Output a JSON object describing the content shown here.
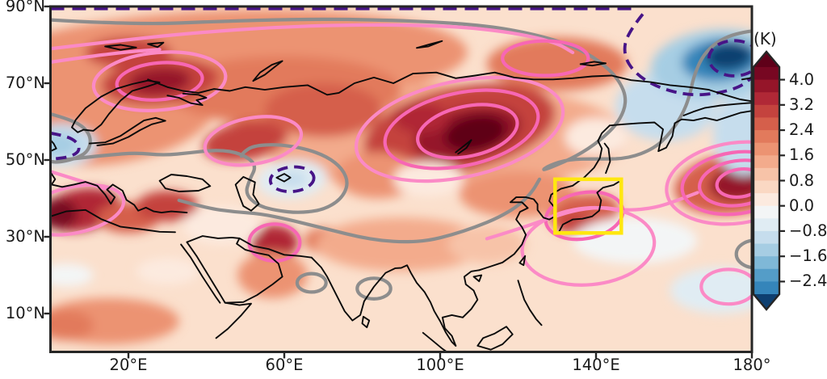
{
  "figure": {
    "colorbar": {
      "label": "(K)",
      "ticks": [
        {
          "value": 4.0,
          "label": "4.0"
        },
        {
          "value": 3.2,
          "label": "3.2"
        },
        {
          "value": 2.4,
          "label": "2.4"
        },
        {
          "value": 1.6,
          "label": "1.6"
        },
        {
          "value": 0.8,
          "label": "0.8"
        },
        {
          "value": 0.0,
          "label": "0.0"
        },
        {
          "value": -0.8,
          "label": "−0.8"
        },
        {
          "value": -1.6,
          "label": "−1.6"
        },
        {
          "value": -2.4,
          "label": "−2.4"
        }
      ],
      "top_value": 4.4,
      "bottom_value": -2.8,
      "step": 0.4,
      "segment_colors": [
        "#770722",
        "#951529",
        "#b02836",
        "#c4433e",
        "#d55f4b",
        "#e27a5c",
        "#ec9372",
        "#f3ab8c",
        "#f7c3a8",
        "#fad8c3",
        "#fceadf",
        "#f3f5f6",
        "#e0ecf3",
        "#c6dded",
        "#a6cde3",
        "#7fb8d7",
        "#549dc8",
        "#3585ba"
      ],
      "arrow_top_color": "#5f0019",
      "arrow_bottom_color": "#0e3f70"
    },
    "x_axis": {
      "ticks": [
        {
          "lon": 20,
          "label": "20°E"
        },
        {
          "lon": 60,
          "label": "60°E"
        },
        {
          "lon": 100,
          "label": "100°E"
        },
        {
          "lon": 140,
          "label": "140°E"
        },
        {
          "lon": 180,
          "label": "180°"
        }
      ]
    },
    "y_axis": {
      "ticks": [
        {
          "lat": 90,
          "label": "90°N"
        },
        {
          "lat": 70,
          "label": "70°N"
        },
        {
          "lat": 50,
          "label": "50°N"
        },
        {
          "lat": 30,
          "label": "30°N"
        },
        {
          "lat": 10,
          "label": "10°N"
        }
      ]
    }
  },
  "chart_data": {
    "type": "heatmap",
    "description": "Filled-contour map of temperature anomalies (K) over Eurasia, 0–180°E and 0–90°N. Shading shows anomalies from below −2.4 K (blue) to above 4.0 K (dark red). Pink solid contours outline positive anomaly centers, the thick gray line is the zero contour, dark-purple dashed contours outline negative anomalies, and a yellow box highlights the Korea–Japan region.",
    "units": "K",
    "extent": {
      "lon": [
        0,
        180
      ],
      "lat": [
        0,
        90
      ]
    },
    "levels": {
      "shading_step": 0.4,
      "shading_range": [
        -2.8,
        4.4
      ],
      "extend": "both"
    },
    "contour_colors": {
      "positive": "#f767b4",
      "positive_light": "#fb8ac6",
      "zero": "#8d8d8d",
      "negative": "#471487",
      "negative_style": "dashed"
    },
    "highlight_box": {
      "color": "#ffe70f",
      "lon": [
        129.5,
        146.5
      ],
      "lat": [
        31,
        45
      ]
    },
    "warm_centers": [
      {
        "lon": 108,
        "lat": 57,
        "peak_K": 4.6
      },
      {
        "lon": 28,
        "lat": 70.5,
        "peak_K": 4.0
      },
      {
        "lon": 2,
        "lat": 36,
        "peak_K": 4.2
      },
      {
        "lon": 177,
        "lat": 44,
        "peak_K": 3.8
      },
      {
        "lon": 57.5,
        "lat": 28.5,
        "peak_K": 3.4
      },
      {
        "lon": 50,
        "lat": 55,
        "peak_K": 2.9
      },
      {
        "lon": 137,
        "lat": 35,
        "peak_K": 2.9
      },
      {
        "lon": 20,
        "lat": 78,
        "peak_K": 3.0
      }
    ],
    "cold_centers": [
      {
        "lon": 173,
        "lat": 76,
        "peak_K": -2.8
      },
      {
        "lon": 2,
        "lat": 54,
        "peak_K": -1.5
      },
      {
        "lon": 62,
        "lat": 45,
        "peak_K": -1.1
      },
      {
        "lon": 158,
        "lat": 64,
        "peak_K": -0.9
      },
      {
        "lon": 178,
        "lat": 57,
        "peak_K": -1.1
      }
    ],
    "render": {
      "base_color": "#fbe0cd",
      "blobs": [
        [
          45,
          76,
          62,
          13,
          -2,
          1.8
        ],
        [
          15,
          62,
          28,
          13,
          -8,
          1.8
        ],
        [
          100,
          56,
          48,
          14,
          0,
          1.6
        ],
        [
          60,
          68,
          30,
          9,
          0,
          2.2
        ],
        [
          130,
          75,
          18,
          7,
          0,
          2.2
        ],
        [
          20,
          78,
          11,
          4,
          0,
          3.0
        ],
        [
          28,
          70.5,
          15,
          6,
          -5,
          3.0
        ],
        [
          28,
          70.5,
          8,
          3.5,
          -5,
          4.0
        ],
        [
          50,
          55,
          11,
          5,
          -10,
          2.9
        ],
        [
          70,
          63,
          15,
          7,
          0,
          2.6
        ],
        [
          105,
          58,
          25,
          11,
          -12,
          2.9
        ],
        [
          107,
          57,
          14,
          6.5,
          -12,
          3.8
        ],
        [
          109,
          57,
          8,
          4.5,
          -12,
          4.6
        ],
        [
          95,
          61,
          7,
          4,
          0,
          3.3
        ],
        [
          8,
          37,
          10,
          5.5,
          -10,
          3.6
        ],
        [
          2,
          36,
          5,
          4,
          0,
          4.2
        ],
        [
          20,
          35,
          8,
          4,
          0,
          2.8
        ],
        [
          30,
          38,
          8,
          4,
          0,
          3.0
        ],
        [
          57.5,
          28.5,
          6,
          4.5,
          0,
          3.4
        ],
        [
          71,
          29,
          6,
          3.5,
          0,
          2.2
        ],
        [
          57,
          20,
          9,
          6,
          0,
          2.0
        ],
        [
          120,
          41,
          15,
          6,
          0,
          1.7
        ],
        [
          137,
          36,
          9,
          5,
          -10,
          2.5
        ],
        [
          135,
          33.5,
          5,
          2.8,
          0,
          2.9
        ],
        [
          176,
          44,
          16,
          8,
          -8,
          2.7
        ],
        [
          177,
          44,
          8,
          4.5,
          -8,
          3.8
        ],
        [
          15,
          8,
          18,
          6,
          0,
          1.7
        ],
        [
          4,
          7,
          7,
          4,
          0,
          2.4
        ],
        [
          90,
          28,
          22,
          7,
          0,
          1.3
        ],
        [
          112,
          28,
          10,
          5,
          0,
          1.2
        ],
        [
          84,
          46,
          11,
          6,
          0,
          1.7
        ],
        [
          97,
          45,
          9,
          4.5,
          0,
          0.2
        ],
        [
          140,
          56,
          8,
          5,
          0,
          0.2
        ],
        [
          44,
          33,
          10,
          5,
          0,
          0.2
        ],
        [
          30,
          21,
          8,
          3.5,
          0,
          0.1
        ],
        [
          150,
          29,
          16,
          6,
          0,
          -0.2
        ],
        [
          172,
          16,
          13,
          6,
          0,
          -0.4
        ],
        [
          4,
          20,
          7,
          3,
          0,
          -0.3
        ],
        [
          3,
          54,
          9,
          5.5,
          0,
          -1.1
        ],
        [
          2,
          54,
          5,
          3,
          0,
          -1.5
        ],
        [
          62,
          45,
          9,
          5,
          -5,
          -0.7
        ],
        [
          62,
          45,
          4,
          2.2,
          0,
          -1.1
        ],
        [
          158,
          64,
          13,
          9,
          0,
          -0.9
        ],
        [
          178,
          57,
          8,
          11,
          0,
          -1.1
        ],
        [
          171,
          75,
          17,
          9,
          -5,
          -1.5
        ],
        [
          172,
          76,
          10,
          5.5,
          -5,
          -2.4
        ],
        [
          174,
          77,
          6,
          3.5,
          -5,
          -2.8
        ]
      ],
      "pink_rings": [
        [
          28,
          70.5,
          17,
          7.5,
          -5,
          0
        ],
        [
          28,
          70.5,
          11,
          4.8,
          -5,
          1
        ],
        [
          6,
          37,
          13,
          6,
          -12,
          0
        ],
        [
          57.5,
          28.5,
          6.5,
          4.8,
          0,
          1
        ],
        [
          52,
          55,
          12.5,
          6,
          -10,
          0
        ],
        [
          105,
          58,
          27,
          12.5,
          -12,
          0
        ],
        [
          105.5,
          58,
          20,
          9.5,
          -12,
          1
        ],
        [
          107,
          57.5,
          13,
          6.5,
          -12,
          1
        ],
        [
          137,
          35.5,
          10,
          6,
          -10,
          1
        ],
        [
          138,
          27.5,
          17,
          10,
          -5,
          0
        ],
        [
          176,
          44,
          18,
          10.5,
          -8,
          0
        ],
        [
          176,
          44,
          14,
          8,
          -8,
          1
        ],
        [
          176.5,
          44,
          10,
          5.8,
          -8,
          1
        ],
        [
          177,
          44,
          6,
          3.6,
          -8,
          1
        ],
        [
          127,
          76.5,
          11,
          4.5,
          0,
          1
        ],
        [
          174,
          17,
          7,
          4.5,
          0,
          0
        ]
      ],
      "pink_paths": [
        [
          [
            0,
            79
          ],
          [
            15,
            80.8
          ],
          [
            35,
            83
          ],
          [
            60,
            84.8
          ],
          [
            85,
            85.3
          ],
          [
            105,
            84.8
          ],
          [
            120,
            83
          ],
          [
            130,
            80.5
          ],
          [
            134,
            78
          ]
        ],
        [
          [
            0,
            75.5
          ],
          [
            10,
            77
          ],
          [
            20,
            78.2
          ],
          [
            28,
            78.8
          ]
        ],
        [
          [
            0,
            47
          ],
          [
            7,
            44.8
          ],
          [
            14,
            42.5
          ]
        ],
        [
          [
            112,
            29.5
          ],
          [
            120,
            32
          ],
          [
            127,
            34.5
          ],
          [
            134,
            36.8
          ],
          [
            141,
            37.8
          ],
          [
            148,
            36.8
          ],
          [
            155,
            37.5
          ],
          [
            161,
            39.5
          ],
          [
            166,
            41.5
          ]
        ]
      ],
      "gray_paths": [
        [
          [
            0,
            86.5
          ],
          [
            22,
            85.2
          ],
          [
            45,
            86.2
          ],
          [
            70,
            86.8
          ],
          [
            95,
            86.2
          ],
          [
            112,
            85
          ],
          [
            124,
            82.8
          ],
          [
            134,
            79.8
          ],
          [
            141,
            75.8
          ],
          [
            146,
            70.8
          ],
          [
            148,
            65.5
          ],
          [
            146,
            60
          ],
          [
            141,
            55
          ],
          [
            135,
            51
          ],
          [
            129,
            48.3
          ],
          [
            126,
            47.2
          ],
          [
            128,
            48.6
          ],
          [
            133,
            50.2
          ],
          [
            140,
            50.3
          ],
          [
            148,
            50.3
          ],
          [
            155,
            53
          ],
          [
            159,
            57
          ],
          [
            162,
            61.5
          ],
          [
            164,
            66.5
          ],
          [
            165,
            71.5
          ],
          [
            167,
            76.5
          ],
          [
            170,
            80
          ],
          [
            174,
            82.3
          ],
          [
            178,
            83.3
          ],
          [
            180,
            83.6
          ]
        ],
        [
          [
            0,
            62
          ],
          [
            5,
            60.6
          ],
          [
            9,
            58.3
          ],
          [
            10.5,
            55.3
          ],
          [
            9.5,
            52
          ],
          [
            6,
            50.2
          ],
          [
            2,
            49.4
          ],
          [
            0,
            49.6
          ]
        ],
        [
          [
            2,
            49.9
          ],
          [
            8,
            50.6
          ],
          [
            15,
            51.3
          ],
          [
            22,
            51.9
          ],
          [
            29,
            51.2
          ],
          [
            36,
            51.9
          ],
          [
            43,
            52.7
          ],
          [
            49,
            51.7
          ],
          [
            53,
            48.7
          ],
          [
            51,
            44.7
          ],
          [
            50,
            41.2
          ],
          [
            53,
            38.2
          ],
          [
            58,
            36.8
          ],
          [
            64,
            36.2
          ],
          [
            70,
            37
          ],
          [
            74.5,
            39.7
          ],
          [
            76.5,
            43.7
          ],
          [
            75,
            47.7
          ],
          [
            71,
            50.9
          ],
          [
            65,
            53.1
          ],
          [
            58,
            54.1
          ],
          [
            52,
            53.7
          ],
          [
            49.5,
            52
          ],
          [
            49,
            51
          ]
        ],
        [
          [
            33,
            39.5
          ],
          [
            40,
            37.5
          ],
          [
            47,
            36.5
          ],
          [
            54,
            36
          ],
          [
            61,
            34.5
          ],
          [
            67,
            33
          ],
          [
            73,
            31.5
          ],
          [
            79,
            30
          ],
          [
            85,
            29
          ],
          [
            91,
            28.6
          ],
          [
            97,
            29
          ],
          [
            103,
            30.5
          ],
          [
            109,
            32.5
          ],
          [
            115,
            35
          ],
          [
            120,
            38
          ],
          [
            123.5,
            41.5
          ],
          [
            125.5,
            45
          ]
        ]
      ],
      "gray_rings": [
        [
          83,
          16.5,
          4.3,
          2.7,
          0
        ],
        [
          67,
          18,
          3.7,
          2.4,
          0
        ],
        [
          181,
          25.5,
          5,
          3.6,
          0
        ]
      ],
      "purple_top_line": {
        "lat": 89.5,
        "lon_from": 0,
        "lon_to": 150
      },
      "purple_paths": [
        [
          [
            152,
            88
          ],
          [
            148,
            83
          ],
          [
            147,
            77.5
          ],
          [
            150,
            72.5
          ],
          [
            156,
            68.8
          ],
          [
            164,
            66.8
          ],
          [
            171,
            67.3
          ],
          [
            177,
            69
          ],
          [
            180,
            71.5
          ]
        ],
        [
          [
            0,
            57
          ],
          [
            4,
            56.3
          ],
          [
            7,
            54.6
          ],
          [
            7.5,
            52.3
          ],
          [
            5,
            50.8
          ],
          [
            1,
            50.3
          ]
        ]
      ],
      "purple_rings": [
        [
          175.5,
          76.5,
          6.5,
          4.6,
          0
        ],
        [
          62,
          45,
          5.6,
          3.2,
          -5
        ]
      ]
    }
  }
}
